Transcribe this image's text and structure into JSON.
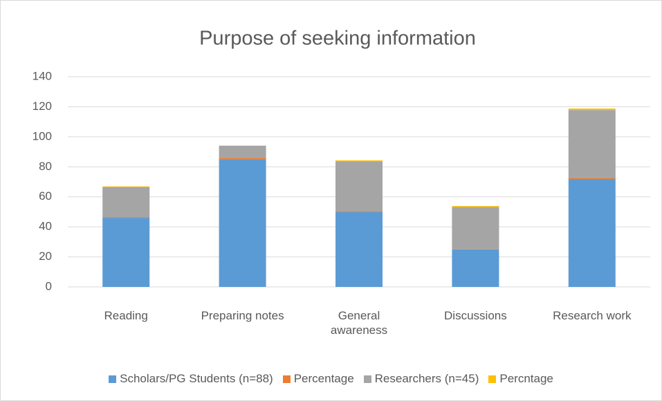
{
  "chart_data": {
    "type": "bar",
    "stacked": true,
    "title": "Purpose of seeking information",
    "categories": [
      "Reading",
      "Preparing notes",
      "General awareness",
      "Discussions",
      "Research work"
    ],
    "series": [
      {
        "name": "Scholars/PG Students (n=88)",
        "color": "#5b9bd5",
        "values": [
          46,
          85,
          50,
          25,
          72
        ]
      },
      {
        "name": "Percentage",
        "color": "#ed7d31",
        "values": [
          0.52,
          0.97,
          0.57,
          0.28,
          0.82
        ]
      },
      {
        "name": "Researchers (n=45)",
        "color": "#a5a5a5",
        "values": [
          20,
          8,
          33,
          28,
          45
        ]
      },
      {
        "name": "Percntage",
        "color": "#ffc000",
        "values": [
          0.44,
          0.18,
          0.73,
          0.62,
          1.0
        ]
      }
    ],
    "ylim": [
      0,
      140
    ],
    "yticks": [
      0,
      20,
      40,
      60,
      80,
      100,
      120,
      140
    ],
    "grid": true,
    "legend": "bottom"
  }
}
